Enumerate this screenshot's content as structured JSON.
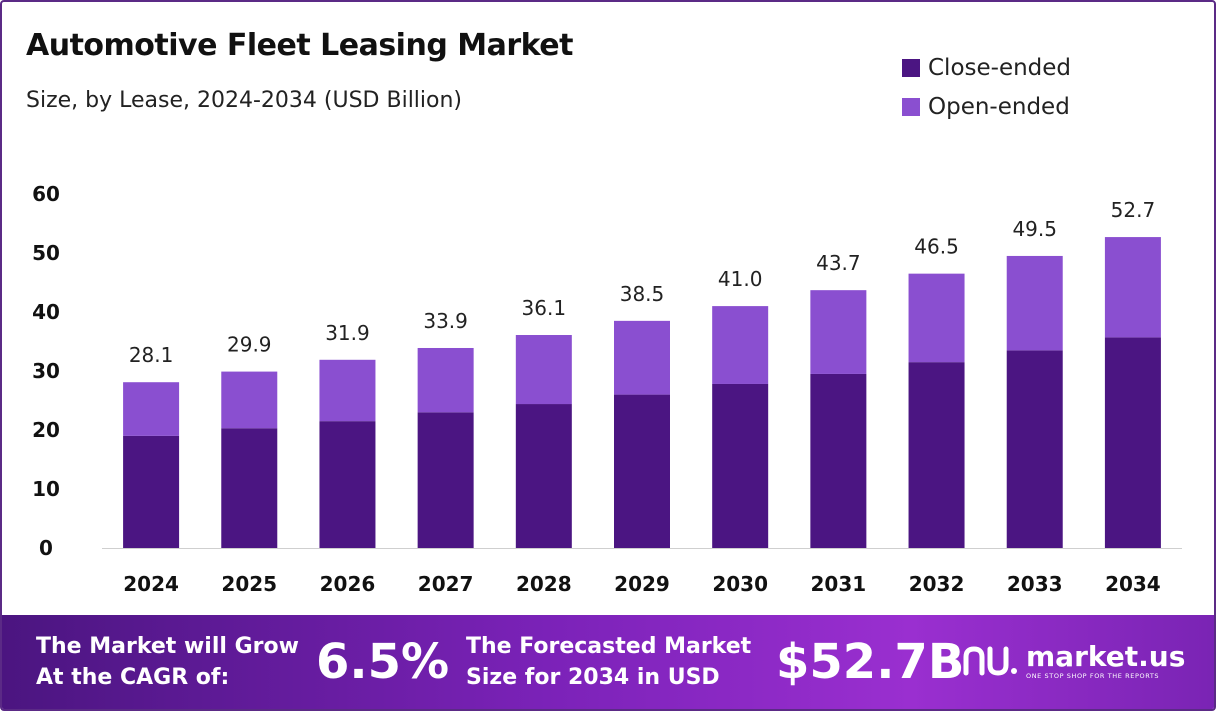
{
  "header": {
    "title": "Automotive Fleet Leasing Market",
    "subtitle": "Size, by Lease, 2024-2034 (USD Billion)"
  },
  "legend": [
    {
      "label": "Close-ended",
      "color": "#4b1582"
    },
    {
      "label": "Open-ended",
      "color": "#8a4fd0"
    }
  ],
  "chart_data": {
    "type": "bar",
    "stacked": true,
    "categories": [
      "2024",
      "2025",
      "2026",
      "2027",
      "2028",
      "2029",
      "2030",
      "2031",
      "2032",
      "2033",
      "2034"
    ],
    "series": [
      {
        "name": "Close-ended",
        "color": "#4b1582",
        "values": [
          19.0,
          20.3,
          21.5,
          23.0,
          24.4,
          26.0,
          27.8,
          29.5,
          31.5,
          33.5,
          35.7
        ]
      },
      {
        "name": "Open-ended",
        "color": "#8a4fd0",
        "values": [
          9.1,
          9.6,
          10.4,
          10.9,
          11.7,
          12.5,
          13.2,
          14.2,
          15.0,
          16.0,
          17.0
        ]
      }
    ],
    "totals": [
      "28.1",
      "29.9",
      "31.9",
      "33.9",
      "36.1",
      "38.5",
      "41.0",
      "43.7",
      "46.5",
      "49.5",
      "52.7"
    ],
    "y_ticks": [
      0,
      10,
      20,
      30,
      40,
      50,
      60
    ],
    "ylim": [
      0,
      60
    ],
    "grid": false,
    "legend_position": "top-right"
  },
  "footer": {
    "cagr_label_line1": "The Market will Grow",
    "cagr_label_line2": "At the CAGR of:",
    "cagr_value": "6.5%",
    "forecast_label_line1": "The Forecasted Market",
    "forecast_label_line2": "Size for 2034 in USD",
    "forecast_value": "$52.7B",
    "brand_name": "market.us",
    "brand_tagline": "ONE STOP SHOP FOR THE REPORTS"
  }
}
